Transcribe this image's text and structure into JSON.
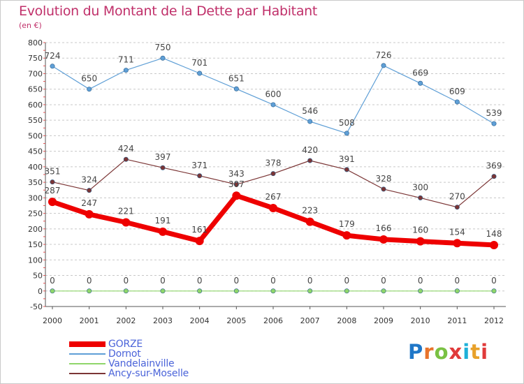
{
  "header": {
    "title": "Evolution du Montant de la Dette par Habitant",
    "subtitle": "(en €)"
  },
  "logo": {
    "text": "Proxiti",
    "letter_colors": [
      "#1f77c8",
      "#e8732a",
      "#7ac143",
      "#e03a3a",
      "#1fb0d8",
      "#e8a12a",
      "#e03a3a"
    ]
  },
  "chart_data": {
    "type": "line",
    "title": "Evolution du Montant de la Dette par Habitant",
    "subtitle": "(en €)",
    "x": [
      "2000",
      "2001",
      "2002",
      "2003",
      "2004",
      "2005",
      "2006",
      "2007",
      "2008",
      "2009",
      "2010",
      "2011",
      "2012"
    ],
    "ylim": [
      -50,
      800
    ],
    "yticks": [
      "-50",
      "0",
      "50",
      "100",
      "150",
      "200",
      "250",
      "300",
      "350",
      "400",
      "450",
      "500",
      "550",
      "600",
      "650",
      "700",
      "750",
      "800"
    ],
    "grid": "horizontal",
    "legend_position": "bottom-left",
    "series": [
      {
        "name": "Dornot",
        "color": "#5f9fd6",
        "values": [
          724,
          650,
          711,
          750,
          701,
          651,
          600,
          546,
          508,
          726,
          669,
          609,
          539
        ],
        "labels": [
          "724",
          "650",
          "711",
          "750",
          "701",
          "651",
          "600",
          "546",
          "508",
          "726",
          "669",
          "609",
          "539"
        ]
      },
      {
        "name": "Ancy-sur-Moselle",
        "color": "#7b3535",
        "values": [
          351,
          324,
          424,
          397,
          371,
          343,
          378,
          420,
          391,
          328,
          300,
          270,
          369
        ],
        "labels": [
          "351",
          "324",
          "424",
          "397",
          "371",
          "343",
          "378",
          "420",
          "391",
          "328",
          "300",
          "270",
          "369"
        ]
      },
      {
        "name": "GORZE",
        "color": "#ee0000",
        "values": [
          287,
          247,
          221,
          191,
          161,
          307,
          267,
          223,
          179,
          166,
          160,
          154,
          148
        ],
        "labels": [
          "287",
          "247",
          "221",
          "191",
          "161",
          "307",
          "267",
          "223",
          "179",
          "166",
          "160",
          "154",
          "148"
        ]
      },
      {
        "name": "Vandelainville",
        "color": "#8fd66a",
        "values": [
          0,
          0,
          0,
          0,
          0,
          0,
          0,
          0,
          0,
          0,
          0,
          0,
          0
        ],
        "labels": [
          "0",
          "0",
          "0",
          "0",
          "0",
          "0",
          "0",
          "0",
          "0",
          "0",
          "0",
          "0",
          "0"
        ]
      }
    ],
    "legend": [
      {
        "name": "GORZE",
        "color": "#ee0000"
      },
      {
        "name": "Dornot",
        "color": "#5f9fd6"
      },
      {
        "name": "Vandelainville",
        "color": "#8fd66a"
      },
      {
        "name": "Ancy-sur-Moselle",
        "color": "#7b3535"
      }
    ]
  }
}
